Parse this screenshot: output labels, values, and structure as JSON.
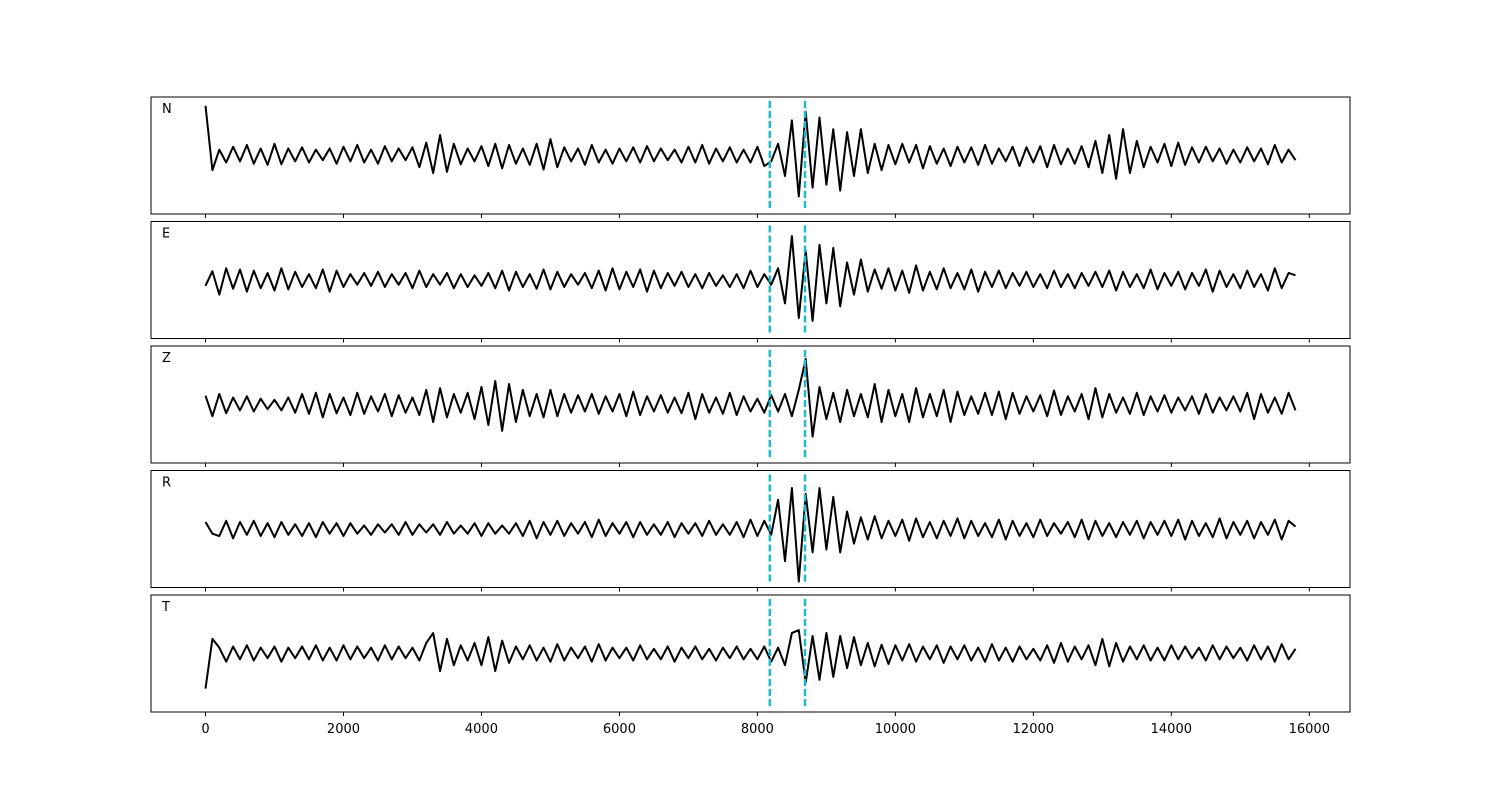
{
  "chart_data": {
    "type": "line",
    "x": [
      0,
      100,
      200,
      300,
      400,
      500,
      600,
      700,
      800,
      900,
      1000,
      1100,
      1200,
      1300,
      1400,
      1500,
      1600,
      1700,
      1800,
      1900,
      2000,
      2100,
      2200,
      2300,
      2400,
      2500,
      2600,
      2700,
      2800,
      2900,
      3000,
      3100,
      3200,
      3300,
      3400,
      3500,
      3600,
      3700,
      3800,
      3900,
      4000,
      4100,
      4200,
      4300,
      4400,
      4500,
      4600,
      4700,
      4800,
      4900,
      5000,
      5100,
      5200,
      5300,
      5400,
      5500,
      5600,
      5700,
      5800,
      5900,
      6000,
      6100,
      6200,
      6300,
      6400,
      6500,
      6600,
      6700,
      6800,
      6900,
      7000,
      7100,
      7200,
      7300,
      7400,
      7500,
      7600,
      7700,
      7800,
      7900,
      8000,
      8100,
      8200,
      8300,
      8400,
      8500,
      8600,
      8700,
      8800,
      8900,
      9000,
      9100,
      9200,
      9300,
      9400,
      9500,
      9600,
      9700,
      9800,
      9900,
      10000,
      10100,
      10200,
      10300,
      10400,
      10500,
      10600,
      10700,
      10800,
      10900,
      11000,
      11100,
      11200,
      11300,
      11400,
      11500,
      11600,
      11700,
      11800,
      11900,
      12000,
      12100,
      12200,
      12300,
      12400,
      12500,
      12600,
      12700,
      12800,
      12900,
      13000,
      13100,
      13200,
      13300,
      13400,
      13500,
      13600,
      13700,
      13800,
      13900,
      14000,
      14100,
      14200,
      14300,
      14400,
      14500,
      14600,
      14700,
      14800,
      14900,
      15000,
      15100,
      15200,
      15300,
      15400,
      15500,
      15600,
      15700,
      15800
    ],
    "series": [
      {
        "name": "N",
        "color": "#000000",
        "values": [
          85,
          -25,
          10,
          -12,
          15,
          -10,
          18,
          -14,
          12,
          -16,
          20,
          -15,
          12,
          -10,
          14,
          -12,
          10,
          -8,
          12,
          -14,
          15,
          -10,
          18,
          -12,
          10,
          -14,
          16,
          -10,
          12,
          -8,
          14,
          -20,
          22,
          -30,
          35,
          -28,
          20,
          -15,
          12,
          -10,
          16,
          -18,
          20,
          -22,
          18,
          -14,
          12,
          -16,
          20,
          -24,
          28,
          -20,
          14,
          -10,
          12,
          -16,
          18,
          -12,
          10,
          -14,
          12,
          -10,
          14,
          -12,
          16,
          -10,
          12,
          -8,
          10,
          -12,
          15,
          -12,
          18,
          -14,
          12,
          -10,
          14,
          -12,
          10,
          -12,
          15,
          -18,
          -10,
          20,
          -35,
          60,
          -70,
          75,
          -55,
          65,
          -50,
          45,
          -60,
          40,
          -35,
          45,
          -30,
          20,
          -25,
          18,
          -15,
          20,
          -12,
          18,
          -22,
          16,
          -14,
          12,
          -18,
          15,
          -12,
          14,
          -16,
          18,
          -14,
          12,
          -10,
          15,
          -18,
          14,
          -12,
          16,
          -20,
          18,
          -15,
          12,
          -14,
          16,
          -20,
          25,
          -30,
          35,
          -40,
          45,
          -30,
          25,
          -20,
          15,
          -12,
          20,
          -18,
          22,
          -16,
          14,
          -12,
          15,
          -10,
          12,
          -14,
          10,
          -12,
          14,
          -10,
          12,
          -15,
          18,
          -12,
          10,
          -8
        ]
      },
      {
        "name": "E",
        "color": "#000000",
        "values": [
          -10,
          15,
          -25,
          20,
          -15,
          18,
          -20,
          16,
          -14,
          12,
          -18,
          20,
          -16,
          14,
          -12,
          10,
          -14,
          18,
          -20,
          16,
          -12,
          10,
          -8,
          12,
          -10,
          14,
          -12,
          10,
          -8,
          12,
          -14,
          16,
          -12,
          10,
          -8,
          12,
          -14,
          10,
          -12,
          8,
          -10,
          12,
          -14,
          16,
          -18,
          14,
          -12,
          10,
          -15,
          18,
          -16,
          14,
          -12,
          10,
          -8,
          12,
          -14,
          16,
          -18,
          20,
          -16,
          14,
          -12,
          18,
          -20,
          16,
          -14,
          12,
          -10,
          14,
          -12,
          10,
          -14,
          12,
          -10,
          8,
          -12,
          10,
          -14,
          16,
          -12,
          10,
          -8,
          20,
          -40,
          75,
          -65,
          50,
          -70,
          60,
          -40,
          55,
          -45,
          30,
          -25,
          35,
          -20,
          18,
          -15,
          20,
          -18,
          16,
          -22,
          25,
          -18,
          14,
          -16,
          20,
          -14,
          12,
          -16,
          18,
          -20,
          14,
          -12,
          16,
          -14,
          12,
          -10,
          14,
          -12,
          10,
          -14,
          16,
          -12,
          10,
          -14,
          12,
          -10,
          14,
          -12,
          16,
          -18,
          14,
          -12,
          10,
          -14,
          18,
          -16,
          12,
          -10,
          14,
          -16,
          12,
          -10,
          18,
          -20,
          16,
          -12,
          10,
          -14,
          16,
          -12,
          10,
          -18,
          20,
          -14,
          12,
          8
        ]
      },
      {
        "name": "Z",
        "color": "#000000",
        "values": [
          15,
          -20,
          18,
          -15,
          12,
          -10,
          14,
          -12,
          10,
          -8,
          8,
          -10,
          12,
          -14,
          18,
          -16,
          20,
          -22,
          18,
          -15,
          12,
          -18,
          20,
          -16,
          14,
          -12,
          18,
          -20,
          16,
          -14,
          12,
          -18,
          25,
          -30,
          28,
          -22,
          18,
          -14,
          20,
          -25,
          30,
          -35,
          40,
          -45,
          35,
          -30,
          25,
          -20,
          18,
          -22,
          25,
          -20,
          18,
          -14,
          16,
          -12,
          18,
          -16,
          14,
          -12,
          18,
          -20,
          22,
          -18,
          14,
          -12,
          16,
          -14,
          12,
          -15,
          20,
          -25,
          18,
          -14,
          12,
          -16,
          20,
          -18,
          14,
          -12,
          10,
          -14,
          16,
          -12,
          18,
          -20,
          25,
          78,
          -55,
          30,
          -25,
          20,
          -30,
          25,
          -20,
          18,
          -22,
          35,
          -30,
          25,
          -20,
          18,
          -30,
          28,
          -22,
          18,
          -20,
          25,
          -30,
          22,
          -18,
          14,
          -16,
          20,
          -18,
          22,
          -25,
          20,
          -16,
          14,
          -12,
          16,
          -20,
          24,
          -18,
          14,
          -12,
          18,
          -25,
          28,
          -22,
          18,
          -14,
          12,
          -16,
          20,
          -18,
          14,
          -12,
          16,
          -14,
          12,
          -10,
          14,
          -16,
          18,
          -14,
          12,
          -10,
          14,
          -12,
          20,
          -25,
          18,
          -14,
          12,
          -16,
          20,
          -10
        ]
      },
      {
        "name": "R",
        "color": "#000000",
        "values": [
          12,
          -8,
          -12,
          14,
          -16,
          12,
          -10,
          14,
          -12,
          10,
          -14,
          12,
          -10,
          8,
          -12,
          10,
          -14,
          12,
          -8,
          10,
          -12,
          10,
          -8,
          6,
          -10,
          8,
          -6,
          8,
          -10,
          12,
          -10,
          8,
          -6,
          8,
          -10,
          12,
          -8,
          6,
          -8,
          10,
          -12,
          10,
          -8,
          6,
          -8,
          10,
          -12,
          14,
          -16,
          12,
          -10,
          14,
          -12,
          10,
          -8,
          12,
          -14,
          16,
          -12,
          10,
          -8,
          12,
          -14,
          12,
          -10,
          8,
          -10,
          12,
          -14,
          10,
          -8,
          10,
          -12,
          14,
          -10,
          8,
          -10,
          12,
          -14,
          16,
          -12,
          14,
          -10,
          50,
          -55,
          70,
          -90,
          60,
          -40,
          70,
          -35,
          55,
          -40,
          30,
          -25,
          20,
          -18,
          22,
          -16,
          14,
          -12,
          16,
          -20,
          18,
          -14,
          12,
          -16,
          14,
          -12,
          18,
          -16,
          14,
          -12,
          10,
          -14,
          16,
          -18,
          14,
          -12,
          10,
          -14,
          16,
          -12,
          10,
          -8,
          12,
          -14,
          16,
          -18,
          14,
          -12,
          10,
          -14,
          12,
          -10,
          14,
          -16,
          12,
          -10,
          14,
          -12,
          16,
          -18,
          14,
          -12,
          10,
          -14,
          18,
          -16,
          12,
          -10,
          14,
          -16,
          12,
          -10,
          16,
          -18,
          14,
          4
        ]
      },
      {
        "name": "T",
        "color": "#000000",
        "values": [
          -60,
          25,
          10,
          -14,
          12,
          -10,
          14,
          -12,
          10,
          -8,
          12,
          -14,
          10,
          -8,
          12,
          -10,
          14,
          -12,
          10,
          -12,
          14,
          -10,
          12,
          -8,
          10,
          -12,
          14,
          -10,
          12,
          -8,
          10,
          -12,
          18,
          35,
          -30,
          25,
          -20,
          14,
          -12,
          18,
          -20,
          28,
          -30,
          22,
          -16,
          12,
          -10,
          14,
          -12,
          10,
          -14,
          16,
          -12,
          10,
          -8,
          12,
          -14,
          16,
          -12,
          10,
          -8,
          10,
          -12,
          14,
          -10,
          8,
          -10,
          12,
          -14,
          10,
          -8,
          12,
          -10,
          8,
          -12,
          10,
          -8,
          12,
          -10,
          8,
          -10,
          12,
          -14,
          10,
          -20,
          35,
          40,
          -50,
          30,
          -45,
          35,
          -40,
          30,
          -25,
          28,
          -20,
          18,
          -22,
          15,
          -18,
          14,
          -12,
          16,
          -14,
          12,
          -10,
          14,
          -16,
          12,
          -10,
          14,
          -12,
          10,
          -14,
          16,
          -12,
          10,
          -14,
          12,
          -10,
          8,
          -12,
          14,
          -16,
          18,
          -14,
          12,
          -10,
          14,
          -20,
          25,
          -22,
          18,
          -14,
          12,
          -10,
          14,
          -12,
          10,
          -12,
          14,
          -10,
          12,
          -8,
          10,
          -12,
          14,
          -10,
          12,
          -8,
          10,
          -12,
          14,
          -10,
          12,
          -14,
          16,
          -10,
          8
        ]
      }
    ],
    "xlim": [
      -790,
      16590
    ],
    "ylim": [
      -100,
      100
    ],
    "xticks": [
      0,
      2000,
      4000,
      6000,
      8000,
      10000,
      12000,
      14000,
      16000
    ],
    "vlines": [
      8180,
      8690
    ],
    "vline_color": "#17becf"
  }
}
